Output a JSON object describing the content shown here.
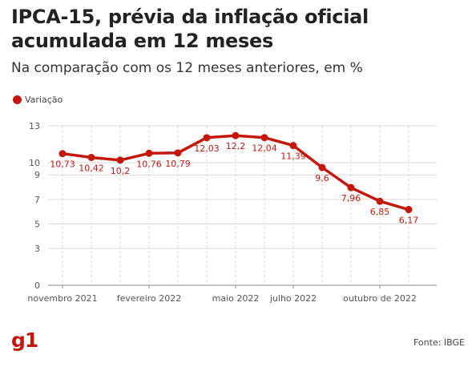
{
  "title": "IPCA-15, prévia da inflação oficial acumulada em 12 meses",
  "subtitle": "Na comparação com os 12 meses anteriores, em %",
  "colors": {
    "series": "#c4170c",
    "logo": "#c4170c",
    "grid": "#d9d9d9",
    "axis": "#888888"
  },
  "legend": {
    "label": "Variação"
  },
  "source": "Fonte: IBGE",
  "logo": {
    "text": "g1"
  },
  "chart_data": {
    "type": "line",
    "grid": true,
    "legend_position": "top-left",
    "ylim": [
      0,
      13
    ],
    "yticks": [
      0,
      3,
      5,
      7,
      9,
      10,
      13
    ],
    "xtick_labels": [
      {
        "index": 0,
        "label": "novembro 2021"
      },
      {
        "index": 3,
        "label": "fevereiro 2022"
      },
      {
        "index": 6,
        "label": "maio 2022"
      },
      {
        "index": 8,
        "label": "julho 2022"
      },
      {
        "index": 11,
        "label": "outubro de 2022"
      }
    ],
    "series": [
      {
        "name": "Variação",
        "values": [
          10.73,
          10.42,
          10.2,
          10.76,
          10.79,
          12.03,
          12.2,
          12.04,
          11.39,
          9.6,
          7.96,
          6.85,
          6.17
        ],
        "labels": [
          "10,73",
          "10,42",
          "10,2",
          "10,76",
          "10,79",
          "12,03",
          "12,2",
          "12,04",
          "11,39",
          "9,6",
          "7,96",
          "6,85",
          "6,17"
        ]
      }
    ]
  }
}
